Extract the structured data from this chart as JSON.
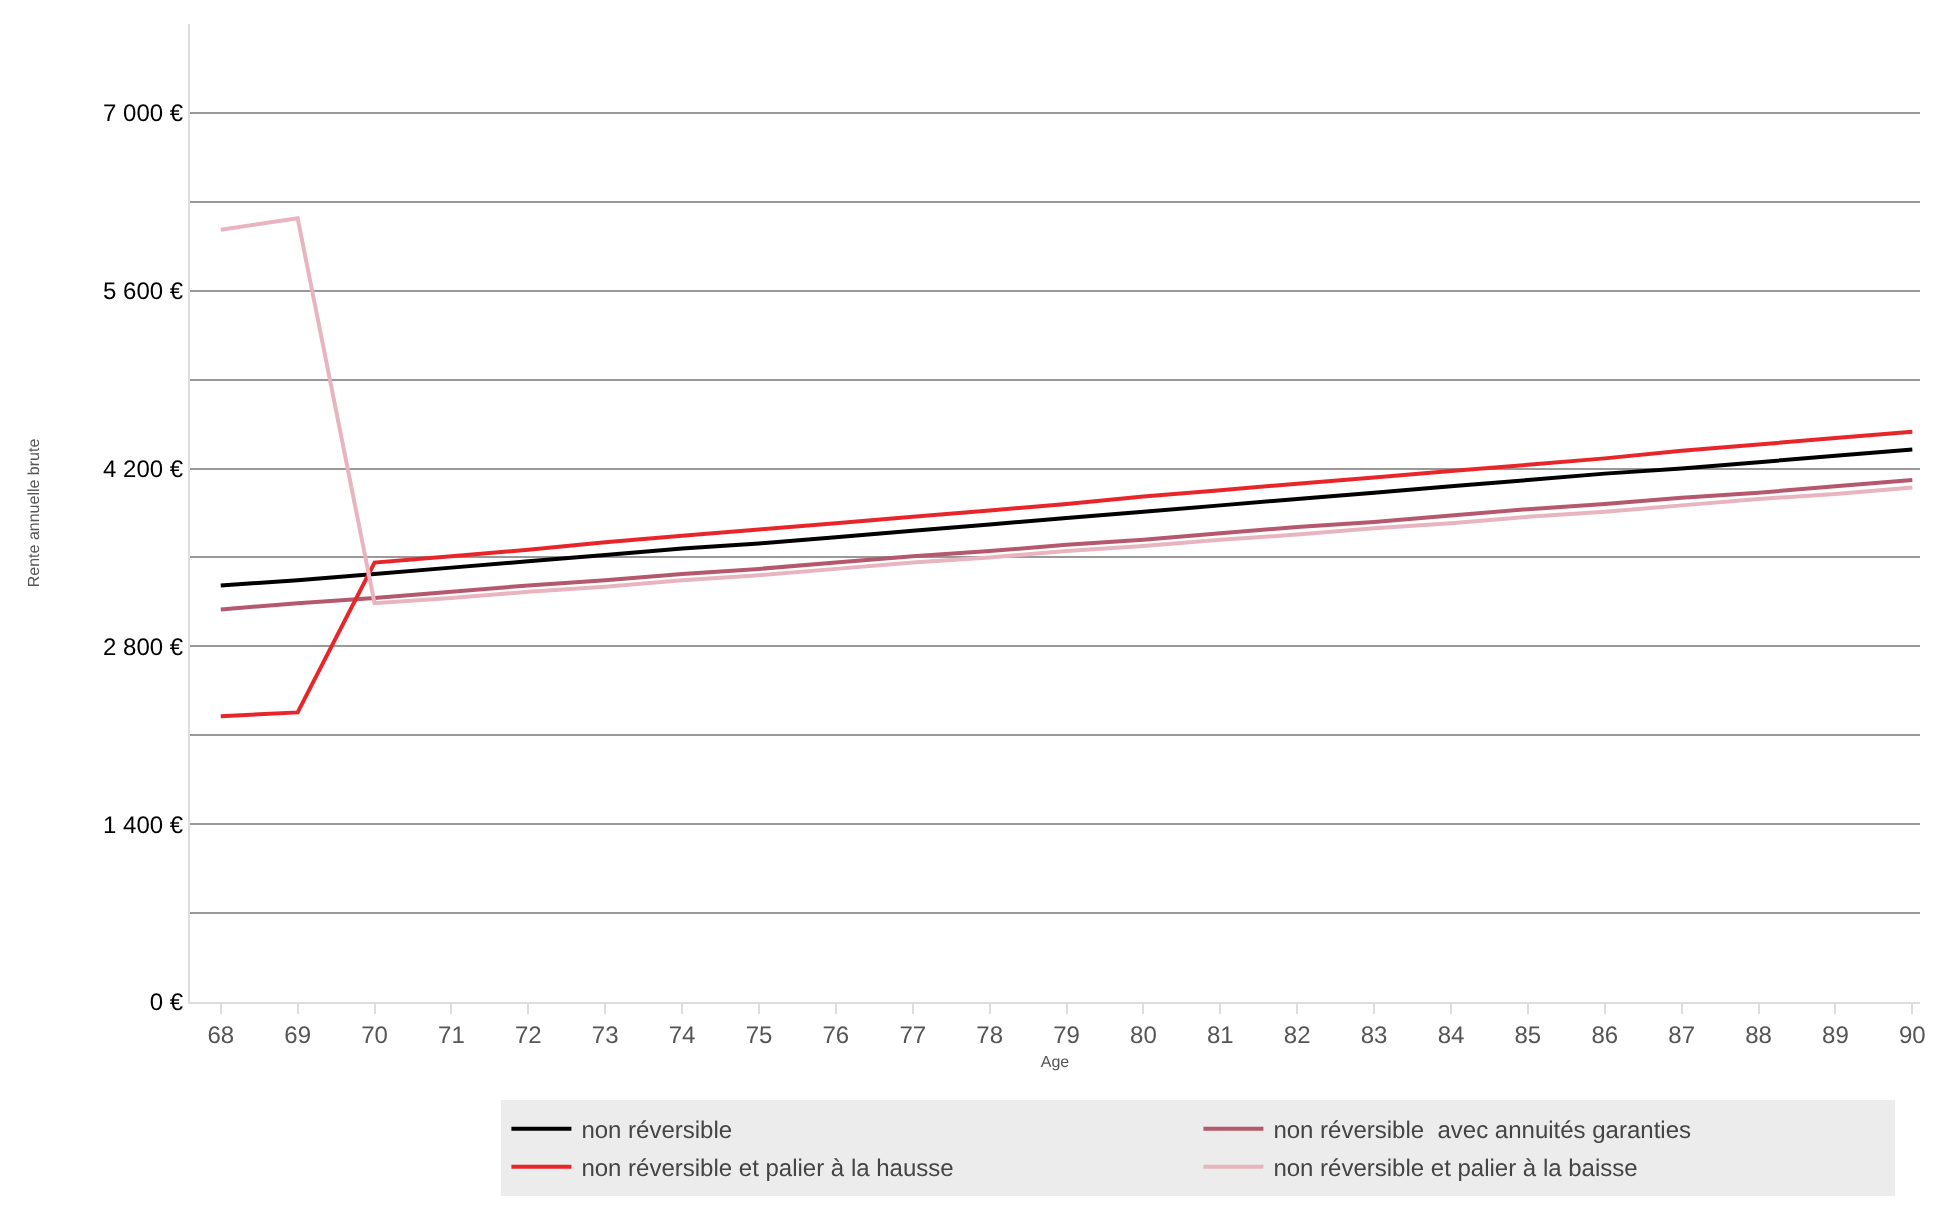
{
  "chart_data": {
    "type": "line",
    "xlabel": "Age",
    "ylabel": "Rente annuelle brute",
    "categories": [
      "68",
      "69",
      "70",
      "71",
      "72",
      "73",
      "74",
      "75",
      "76",
      "77",
      "78",
      "79",
      "80",
      "81",
      "82",
      "83",
      "84",
      "85",
      "86",
      "87",
      "88",
      "89",
      "90"
    ],
    "series": [
      {
        "name": "non réversible",
        "color": "#000000",
        "values": [
          3280,
          3320,
          3370,
          3420,
          3470,
          3520,
          3570,
          3610,
          3660,
          3710,
          3760,
          3810,
          3860,
          3910,
          3960,
          4010,
          4060,
          4110,
          4160,
          4200,
          4250,
          4300,
          4350
        ]
      },
      {
        "name": "non réversible  avec annuités garanties",
        "color": "#b5586e",
        "values": [
          3090,
          3140,
          3180,
          3230,
          3280,
          3320,
          3370,
          3410,
          3460,
          3510,
          3550,
          3600,
          3640,
          3690,
          3740,
          3780,
          3830,
          3880,
          3920,
          3970,
          4010,
          4060,
          4110
        ]
      },
      {
        "name": "non réversible et palier à la hausse",
        "color": "#e8262a",
        "values": [
          2250,
          2280,
          3460,
          3510,
          3560,
          3620,
          3670,
          3720,
          3770,
          3820,
          3870,
          3920,
          3980,
          4030,
          4080,
          4130,
          4180,
          4230,
          4280,
          4340,
          4390,
          4440,
          4490
        ]
      },
      {
        "name": "non réversible et palier à la baisse",
        "color": "#e8b4bf",
        "values": [
          6080,
          6170,
          3140,
          3180,
          3230,
          3270,
          3320,
          3360,
          3410,
          3460,
          3500,
          3550,
          3590,
          3640,
          3680,
          3730,
          3770,
          3820,
          3860,
          3910,
          3960,
          4000,
          4050
        ]
      }
    ],
    "ylim": [
      0,
      7700
    ],
    "yticks": [
      {
        "value": 0,
        "label": "0 €"
      },
      {
        "value": 700,
        "label": null
      },
      {
        "value": 1400,
        "label": "1 400 €"
      },
      {
        "value": 2100,
        "label": null
      },
      {
        "value": 2800,
        "label": "2 800 €"
      },
      {
        "value": 3500,
        "label": null
      },
      {
        "value": 4200,
        "label": "4 200 €"
      },
      {
        "value": 4900,
        "label": null
      },
      {
        "value": 5600,
        "label": "5 600 €"
      },
      {
        "value": 6300,
        "label": null
      },
      {
        "value": 7000,
        "label": "7 000 €"
      }
    ],
    "grid": "y",
    "legend": "bottom",
    "marker": "none",
    "line_style": "solid"
  }
}
